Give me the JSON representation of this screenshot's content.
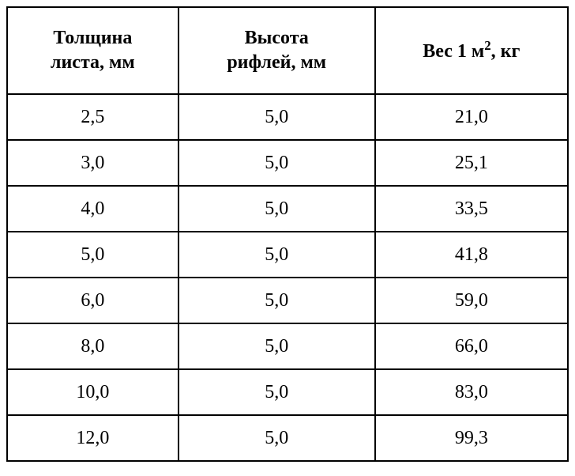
{
  "table": {
    "columns": [
      {
        "label_line1": "Толщина",
        "label_line2": "листа, мм"
      },
      {
        "label_line1": "Высота",
        "label_line2": "рифлей, мм"
      },
      {
        "label_prefix": "Вес 1 м",
        "label_sup": "2",
        "label_suffix": ", кг"
      }
    ],
    "rows": [
      [
        "2,5",
        "5,0",
        "21,0"
      ],
      [
        "3,0",
        "5,0",
        "25,1"
      ],
      [
        "4,0",
        "5,0",
        "33,5"
      ],
      [
        "5,0",
        "5,0",
        "41,8"
      ],
      [
        "6,0",
        "5,0",
        "59,0"
      ],
      [
        "8,0",
        "5,0",
        "66,0"
      ],
      [
        "10,0",
        "5,0",
        "83,0"
      ],
      [
        "12,0",
        "5,0",
        "99,3"
      ]
    ],
    "styling": {
      "border_color": "#000000",
      "border_width": 2,
      "background_color": "#ffffff",
      "text_color": "#000000",
      "header_fontsize": 24,
      "cell_fontsize": 24,
      "header_fontweight": "bold",
      "cell_fontweight": "normal",
      "font_family": "Times New Roman",
      "col_widths_pct": [
        33.3,
        33.3,
        33.4
      ]
    }
  }
}
